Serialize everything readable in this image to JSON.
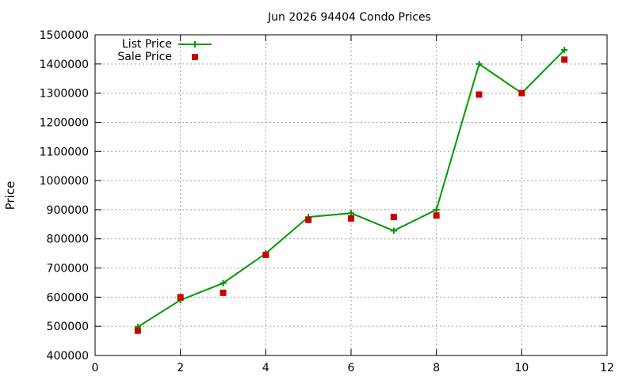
{
  "chart_data": {
    "type": "line",
    "title": "Jun 2026 94404 Condo Prices",
    "xlabel": "",
    "ylabel": "Price",
    "xlim": [
      0,
      12
    ],
    "ylim": [
      400000,
      1500000
    ],
    "x_ticks": [
      0,
      2,
      4,
      6,
      8,
      10,
      12
    ],
    "y_ticks": [
      400000,
      500000,
      600000,
      700000,
      800000,
      900000,
      1000000,
      1100000,
      1200000,
      1300000,
      1400000,
      1500000
    ],
    "grid": true,
    "legend_position": "top-left",
    "x": [
      1,
      2,
      3,
      4,
      5,
      6,
      7,
      8,
      9,
      10,
      11
    ],
    "series": [
      {
        "name": "List Price",
        "style": "line-with-plus-markers",
        "color": "#009900",
        "values": [
          498000,
          590000,
          648000,
          750000,
          875000,
          888000,
          828000,
          900000,
          1400000,
          1300000,
          1448000
        ]
      },
      {
        "name": "Sale Price",
        "style": "square-markers",
        "color": "#cc0000",
        "values": [
          485000,
          600000,
          615000,
          745000,
          865000,
          870000,
          875000,
          880000,
          1295000,
          1300000,
          1415000
        ]
      }
    ]
  }
}
